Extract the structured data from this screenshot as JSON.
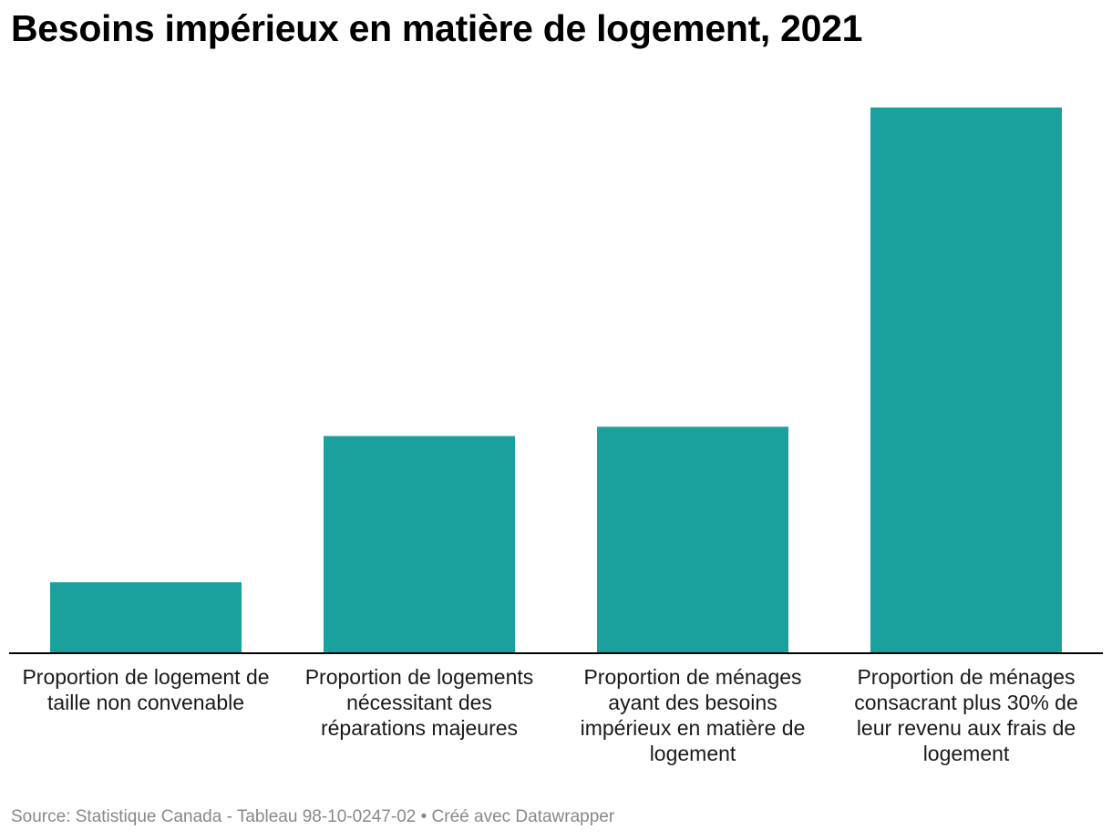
{
  "chart_data": {
    "type": "bar",
    "title": "Besoins impérieux en matière de logement, 2021",
    "categories": [
      "Proportion de logement de taille non convenable",
      "Proportion de logements nécessitant des réparations majeures",
      "Proportion de ménages ayant des besoins impérieux en matière de logement",
      "Proportion de ménages consacrant plus 30% de leur revenu aux frais de logement"
    ],
    "values": [
      13,
      39.8,
      41.5,
      100
    ],
    "xlabel": "",
    "ylabel": "",
    "ylim": [
      0,
      100
    ],
    "grid": false,
    "bar_color": "#1ba19d",
    "baseline_color": "#000000"
  },
  "footer": {
    "source": "Source: Statistique Canada - Tableau 98-10-0247-02 • Créé avec Datawrapper"
  }
}
